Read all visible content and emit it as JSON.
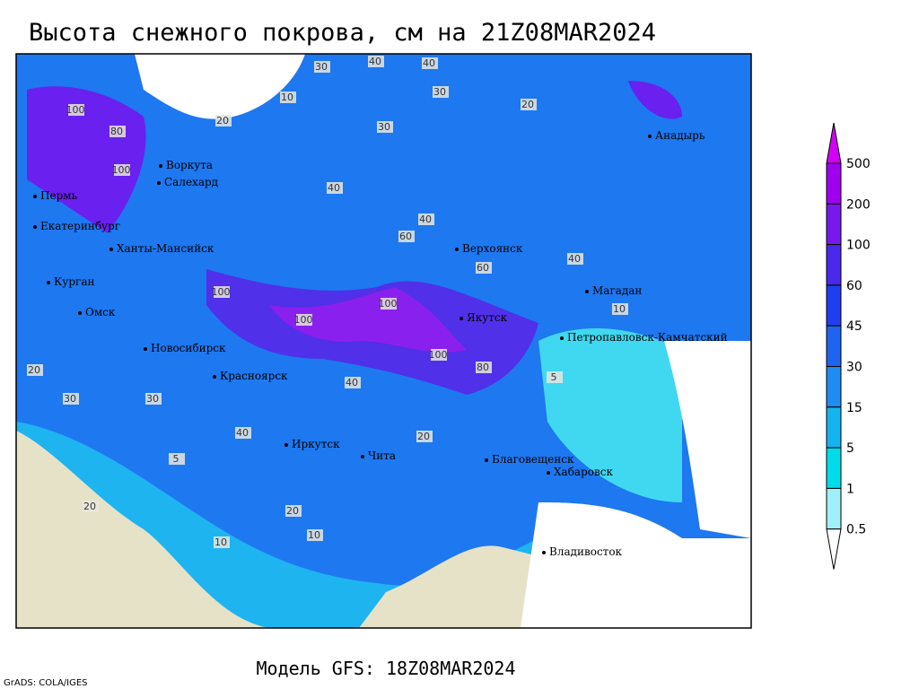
{
  "header": {
    "title": "Высота снежного покрова, см на 21Z08MAR2024"
  },
  "cities": [
    "Воркута",
    "Салехард",
    "Пермь",
    "Екатеринбург",
    "Ханты-Мансийск",
    "Курган",
    "Омск",
    "Новосибирск",
    "Красноярск",
    "Иркутск",
    "Чита",
    "Верхоянск",
    "Якутск",
    "Магадан",
    "Анадырь",
    "Петропавловск-Камчатский",
    "Благовещенск",
    "Хабаровск",
    "Владивосток"
  ],
  "contour_labels": [
    "30",
    "40",
    "40",
    "30",
    "10",
    "30",
    "20",
    "100",
    "80",
    "100",
    "40",
    "60",
    "40",
    "100",
    "100",
    "100",
    "60",
    "100",
    "80",
    "40",
    "20",
    "30",
    "20",
    "10",
    "20",
    "10",
    "5",
    "20",
    "40",
    "10",
    "5",
    "40",
    "30",
    "20"
  ],
  "colorbar": {
    "levels": [
      500,
      200,
      100,
      60,
      45,
      30,
      15,
      5,
      1,
      0.5
    ],
    "colors": [
      "#d200f5",
      "#a000f0",
      "#7818ee",
      "#4a28ee",
      "#1e3ef0",
      "#1e64f0",
      "#1e8cf0",
      "#14b4f0",
      "#00dcea",
      "#a0f0f8",
      "#ffffff"
    ]
  },
  "footer": {
    "model": "Модель GFS: 18Z08MAR2024",
    "credit": "GrADS: COLA/IGES"
  }
}
